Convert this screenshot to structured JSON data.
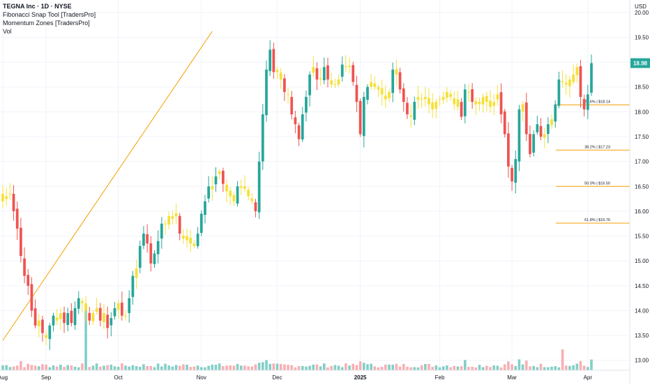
{
  "header": {
    "title": "TEGNA Inc · 1D · NYSE",
    "indicators": [
      "Fibonacci Snap Tool [TradersPro]",
      "Momentum Zones [TradersPro]",
      "Vol"
    ]
  },
  "currency": "USD",
  "last_price": "18.98",
  "colors": {
    "up": "#26a69a",
    "down": "#ef5350",
    "neutral": "#f5e03a",
    "fib": "#f59f00",
    "volume": "#6dc7bd",
    "volume_spike": "#f7a1a6",
    "price_tag": "#26a69a",
    "grid": "#f0f3fa",
    "axis_text": "#131722"
  },
  "chart_data": {
    "type": "candlestick",
    "y_axis": {
      "range": [
        12.8,
        20.25
      ],
      "ticks": [
        "20.00",
        "19.50",
        "19.00",
        "18.50",
        "18.00",
        "17.50",
        "17.00",
        "16.50",
        "16.00",
        "15.50",
        "15.00",
        "14.50",
        "14.00",
        "13.50",
        "13.00"
      ]
    },
    "x_axis": {
      "ticks": [
        {
          "label": "Aug",
          "date": "2024-08-01"
        },
        {
          "label": "Sep",
          "date": "2024-09-03"
        },
        {
          "label": "Oct",
          "date": "2024-10-01"
        },
        {
          "label": "Nov",
          "date": "2024-11-01"
        },
        {
          "label": "Dec",
          "date": "2024-12-02"
        },
        {
          "label": "2025",
          "date": "2025-01-02"
        },
        {
          "label": "Feb",
          "date": "2025-02-03"
        },
        {
          "label": "Mar",
          "date": "2025-03-03"
        },
        {
          "label": "Apr",
          "date": "2025-04-01"
        }
      ]
    },
    "grid": true,
    "fib_swing_line": {
      "from": {
        "date": "2024-08-07",
        "price": 13.4
      },
      "to": {
        "date": "2024-11-06",
        "price": 19.62
      }
    },
    "fib_levels": [
      {
        "label": "23.6% | $18.14",
        "price": 18.14
      },
      {
        "label": "38.2% | $17.23",
        "price": 17.23
      },
      {
        "label": "50.0% | $16.50",
        "price": 16.5
      },
      {
        "label": "61.8% | $15.76",
        "price": 15.76
      }
    ],
    "volume_spike_dates": [
      "2024-09-18",
      "2025-03-21"
    ],
    "closes": [
      16.2,
      16.3,
      16.35,
      16.0,
      15.65,
      15.1,
      14.7,
      14.5,
      14.0,
      13.7,
      13.8,
      13.55,
      13.45,
      13.7,
      13.9,
      13.8,
      13.95,
      13.75,
      13.95,
      13.75,
      14.05,
      14.25,
      14.15,
      14.0,
      13.8,
      13.95,
      14.05,
      13.8,
      13.95,
      13.65,
      13.85,
      14.05,
      14.15,
      13.9,
      13.9,
      14.25,
      14.7,
      14.85,
      15.3,
      15.55,
      15.35,
      14.95,
      15.15,
      15.4,
      15.75,
      15.75,
      15.9,
      15.9,
      15.9,
      15.55,
      15.45,
      15.5,
      15.35,
      15.3,
      15.55,
      15.95,
      16.2,
      16.5,
      16.5,
      16.7,
      16.8,
      16.55,
      16.4,
      16.3,
      16.2,
      16.5,
      16.5,
      16.45,
      16.3,
      16.2,
      16.0,
      17.0,
      17.95,
      18.85,
      19.25,
      18.8,
      18.8,
      18.65,
      18.4,
      18.35,
      17.95,
      17.75,
      17.45,
      17.95,
      18.3,
      18.75,
      18.9,
      18.65,
      18.65,
      18.9,
      18.65,
      18.55,
      18.55,
      18.65,
      18.95,
      18.9,
      18.9,
      18.6,
      18.2,
      17.55,
      18.3,
      18.5,
      18.6,
      18.5,
      18.45,
      18.35,
      18.25,
      18.4,
      18.85,
      18.75,
      18.45,
      18.2,
      17.95,
      17.9,
      18.2,
      18.3,
      18.25,
      18.3,
      18.15,
      18.05,
      18.2,
      18.25,
      18.3,
      18.4,
      18.3,
      18.15,
      18.25,
      17.9,
      18.45,
      18.4,
      18.2,
      18.15,
      18.2,
      18.3,
      18.2,
      18.1,
      18.2,
      18.35,
      17.95,
      17.55,
      16.9,
      16.6,
      17.05,
      18.05,
      18.15,
      17.55,
      17.15,
      17.55,
      17.75,
      17.5,
      17.55,
      17.75,
      17.85,
      18.15,
      18.65,
      18.6,
      18.55,
      18.65,
      18.75,
      18.9,
      18.3,
      18.05,
      18.35,
      18.98
    ]
  }
}
